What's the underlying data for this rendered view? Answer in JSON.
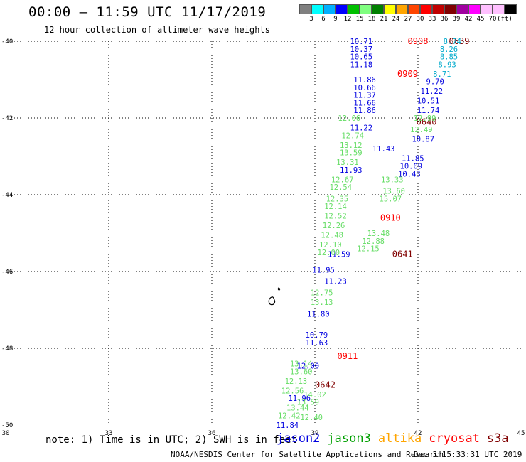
{
  "header": {
    "title": "00:00 — 11:59 UTC 11/17/2019",
    "subtitle": "12 hour collection of altimeter wave heights"
  },
  "colorbar": {
    "unit": "(ft)",
    "colors": [
      "#808080",
      "#00ffff",
      "#00b0ff",
      "#0000ff",
      "#00c000",
      "#80ff80",
      "#008000",
      "#ffff00",
      "#ffa500",
      "#ff4500",
      "#ff0000",
      "#c00000",
      "#800000",
      "#a000a0",
      "#ff00ff",
      "#ffc0ff",
      "#ffc0ff",
      "#000000"
    ],
    "labels": [
      "3",
      "6",
      "9",
      "12",
      "15",
      "18",
      "21",
      "24",
      "27",
      "30",
      "33",
      "36",
      "39",
      "42",
      "45",
      "70"
    ]
  },
  "note": "note:  1) Time is in UTC;  2) SWH is in feet",
  "legend": [
    {
      "name": "jason2",
      "color": "#0000e0"
    },
    {
      "name": "jason3",
      "color": "#00a000"
    },
    {
      "name": "altika",
      "color": "#ffa500"
    },
    {
      "name": "cryosat",
      "color": "#ff0000"
    },
    {
      "name": "s3a",
      "color": "#800000"
    }
  ],
  "footer": {
    "credit": "NOAA/NESDIS Center for Satellite Applications and Research",
    "timestamp": "Dec  3 15:33:31 UTC 2019"
  },
  "chart_data": {
    "type": "scatter",
    "title": "00:00 — 11:59 UTC 11/17/2019",
    "xlim": [
      30,
      45
    ],
    "ylim": [
      -50,
      -40
    ],
    "x_ticks": [
      "30",
      "33",
      "36",
      "39",
      "42",
      "45"
    ],
    "y_ticks": [
      "-40",
      "-42",
      "-44",
      "-46",
      "-48",
      "-50"
    ],
    "grid": true,
    "series": [
      {
        "name": "jason2",
        "color": "#0000e0",
        "points": [
          {
            "x": 40.45,
            "y": -41.0,
            "label": "11.86"
          },
          {
            "x": 40.45,
            "y": -41.2,
            "label": "10.66"
          },
          {
            "x": 40.45,
            "y": -41.4,
            "label": "11.37"
          },
          {
            "x": 40.45,
            "y": -41.6,
            "label": "11.66"
          },
          {
            "x": 40.45,
            "y": -41.8,
            "label": "11.86"
          },
          {
            "x": 40.35,
            "y": -40.0,
            "label": "10.71"
          },
          {
            "x": 40.35,
            "y": -40.2,
            "label": "10.37"
          },
          {
            "x": 40.35,
            "y": -40.4,
            "label": "10.65"
          },
          {
            "x": 40.35,
            "y": -40.6,
            "label": "11.18"
          },
          {
            "x": 40.35,
            "y": -42.25,
            "label": "11.22"
          },
          {
            "x": 41.0,
            "y": -42.8,
            "label": "11.43"
          },
          {
            "x": 40.05,
            "y": -43.35,
            "label": "11.93"
          },
          {
            "x": 39.7,
            "y": -45.55,
            "label": "11.59"
          },
          {
            "x": 39.25,
            "y": -45.95,
            "label": "11.95"
          },
          {
            "x": 39.6,
            "y": -46.25,
            "label": "11.23"
          },
          {
            "x": 39.1,
            "y": -47.1,
            "label": "11.80"
          },
          {
            "x": 39.05,
            "y": -47.65,
            "label": "10.79"
          },
          {
            "x": 39.05,
            "y": -47.85,
            "label": "11.63"
          },
          {
            "x": 38.8,
            "y": -48.45,
            "label": "12.00"
          },
          {
            "x": 38.55,
            "y": -49.3,
            "label": "11.96"
          },
          {
            "x": 38.2,
            "y": -50.0,
            "label": "11.84"
          }
        ]
      },
      {
        "name": "cryosat",
        "color": "#ff0000",
        "points": [
          {
            "x": 42.0,
            "y": -40.0,
            "label": "0908"
          },
          {
            "x": 41.7,
            "y": -40.85,
            "label": "0909"
          },
          {
            "x": 41.2,
            "y": -44.6,
            "label": "0910"
          },
          {
            "x": 39.95,
            "y": -48.2,
            "label": "0911"
          }
        ]
      },
      {
        "name": "s3a",
        "color": "#800000",
        "points": [
          {
            "x": 43.2,
            "y": -40.0,
            "label": "0639"
          },
          {
            "x": 42.25,
            "y": -42.1,
            "label": "0640"
          },
          {
            "x": 41.55,
            "y": -45.55,
            "label": "0641"
          },
          {
            "x": 39.3,
            "y": -48.95,
            "label": "0642"
          }
        ]
      },
      {
        "name": "jason3",
        "color": "#66dd66",
        "points": [
          {
            "x": 40.0,
            "y": -42.0,
            "label": "12.06"
          },
          {
            "x": 40.1,
            "y": -42.45,
            "label": "12.74"
          },
          {
            "x": 40.05,
            "y": -42.7,
            "label": "13.12"
          },
          {
            "x": 40.05,
            "y": -42.9,
            "label": "13.59"
          },
          {
            "x": 39.95,
            "y": -43.15,
            "label": "13.31"
          },
          {
            "x": 39.8,
            "y": -43.6,
            "label": "12.67"
          },
          {
            "x": 39.75,
            "y": -43.8,
            "label": "12.54"
          },
          {
            "x": 39.65,
            "y": -44.1,
            "label": "12.35"
          },
          {
            "x": 39.6,
            "y": -44.3,
            "label": "12.14"
          },
          {
            "x": 39.6,
            "y": -44.55,
            "label": "12.52"
          },
          {
            "x": 39.55,
            "y": -44.8,
            "label": "12.26"
          },
          {
            "x": 39.5,
            "y": -45.05,
            "label": "12.48"
          },
          {
            "x": 39.45,
            "y": -45.3,
            "label": "12.10"
          },
          {
            "x": 39.4,
            "y": -45.5,
            "label": "12.00"
          },
          {
            "x": 41.25,
            "y": -43.6,
            "label": "13.33"
          },
          {
            "x": 41.3,
            "y": -43.9,
            "label": "13.60"
          },
          {
            "x": 41.2,
            "y": -44.1,
            "label": "15.07"
          },
          {
            "x": 40.85,
            "y": -45.0,
            "label": "13.48"
          },
          {
            "x": 40.7,
            "y": -45.2,
            "label": "12.88"
          },
          {
            "x": 40.55,
            "y": -45.4,
            "label": "12.15"
          },
          {
            "x": 42.2,
            "y": -42.0,
            "label": "12.99"
          },
          {
            "x": 42.1,
            "y": -42.3,
            "label": "12.49"
          },
          {
            "x": 39.2,
            "y": -46.55,
            "label": "12.75"
          },
          {
            "x": 39.2,
            "y": -46.8,
            "label": "13.13"
          },
          {
            "x": 38.6,
            "y": -48.4,
            "label": "13.14"
          },
          {
            "x": 38.6,
            "y": -48.6,
            "label": "13.60"
          },
          {
            "x": 38.45,
            "y": -48.85,
            "label": "12.13"
          },
          {
            "x": 38.35,
            "y": -49.1,
            "label": "12.56"
          },
          {
            "x": 39.0,
            "y": -49.2,
            "label": "14.02"
          },
          {
            "x": 38.8,
            "y": -49.4,
            "label": "13.59"
          },
          {
            "x": 38.5,
            "y": -49.55,
            "label": "13.44"
          },
          {
            "x": 38.25,
            "y": -49.75,
            "label": "12.42"
          },
          {
            "x": 38.9,
            "y": -49.8,
            "label": "12.40"
          }
        ]
      },
      {
        "name": "altika",
        "color": "#00aacc",
        "points": [
          {
            "x": 43.0,
            "y": -40.0,
            "label": "8.74"
          },
          {
            "x": 42.9,
            "y": -40.2,
            "label": "8.26"
          },
          {
            "x": 42.9,
            "y": -40.4,
            "label": "8.85"
          },
          {
            "x": 42.85,
            "y": -40.6,
            "label": "8.93"
          },
          {
            "x": 42.7,
            "y": -40.85,
            "label": "8.71"
          }
        ]
      },
      {
        "name": "jason2-b",
        "color": "#0000e0",
        "points": [
          {
            "x": 42.5,
            "y": -41.05,
            "label": "9.70"
          },
          {
            "x": 42.4,
            "y": -41.3,
            "label": "11.22"
          },
          {
            "x": 42.3,
            "y": -41.55,
            "label": "10.51"
          },
          {
            "x": 42.3,
            "y": -41.8,
            "label": "11.74"
          },
          {
            "x": 42.15,
            "y": -42.55,
            "label": "10.87"
          },
          {
            "x": 41.85,
            "y": -43.05,
            "label": "11.85"
          },
          {
            "x": 41.8,
            "y": -43.25,
            "label": "10.09"
          },
          {
            "x": 41.75,
            "y": -43.45,
            "label": "10.43"
          }
        ]
      }
    ]
  }
}
